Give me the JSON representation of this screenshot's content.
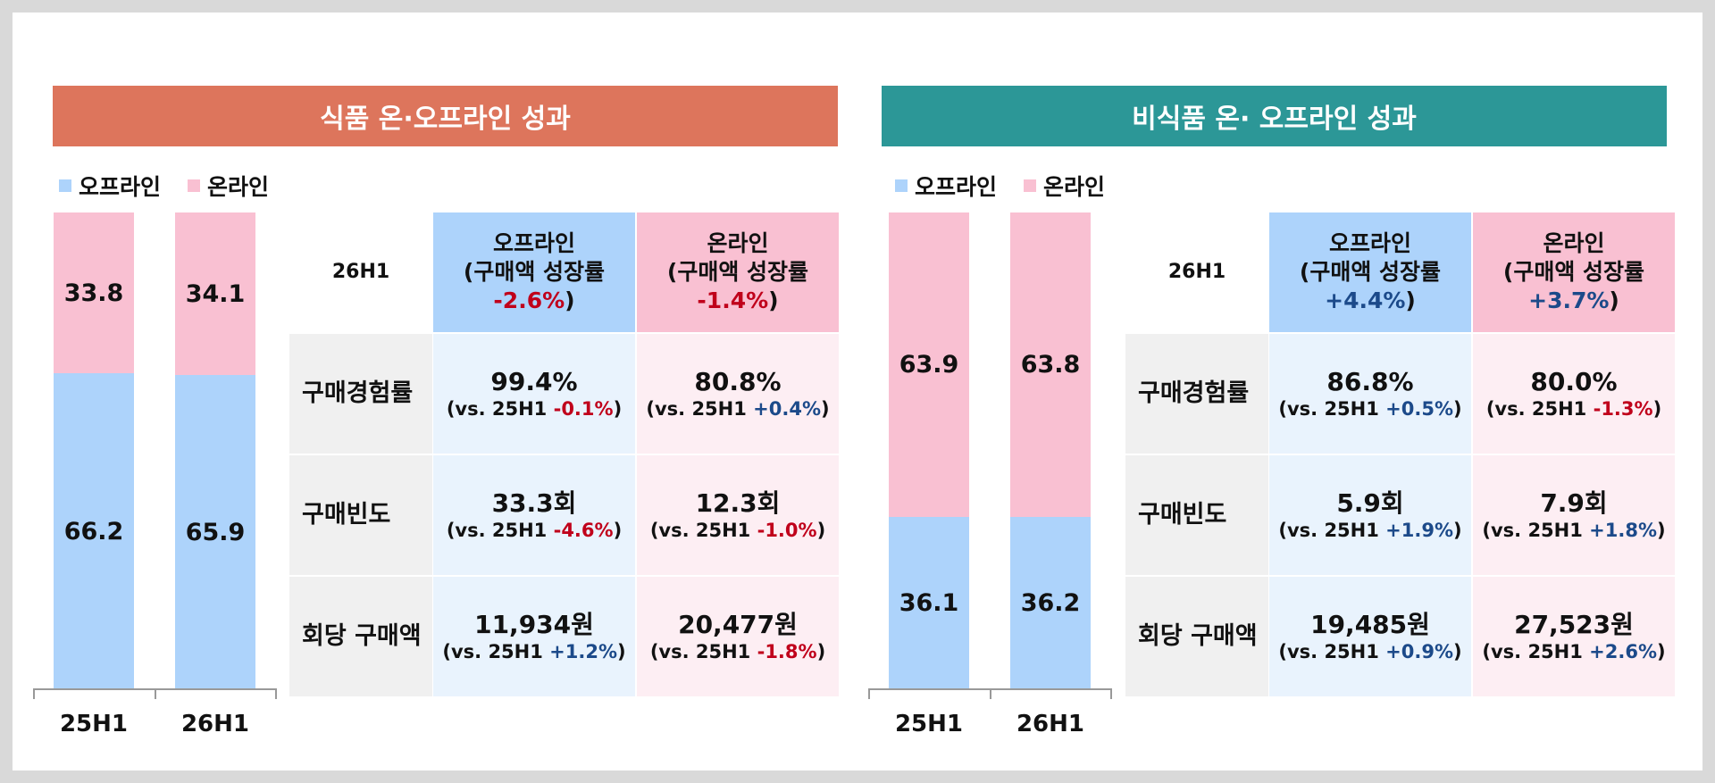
{
  "colors": {
    "food_header": "#dd755c",
    "nonfood_header": "#2c9797",
    "offline": "#add3fb",
    "online": "#f9c0d2",
    "offline_cell": "#e9f3fd",
    "online_cell": "#fdeef3",
    "negative": "#c0001b",
    "positive": "#1c4a8a"
  },
  "legend": {
    "offline": "오프라인",
    "online": "온라인"
  },
  "panels": [
    {
      "title": "식품 온·오프라인 성과",
      "chart_data": {
        "type": "bar",
        "stacked": true,
        "categories": [
          "25H1",
          "26H1"
        ],
        "series": [
          {
            "name": "오프라인",
            "values": [
              66.2,
              65.9
            ]
          },
          {
            "name": "온라인",
            "values": [
              33.8,
              34.1
            ]
          }
        ],
        "ylim": [
          0,
          100
        ]
      },
      "table": {
        "period": "26H1",
        "offline_head": {
          "line1": "오프라인",
          "line2": "(구매액 성장률",
          "rate": "-2.6%",
          "close": ")"
        },
        "online_head": {
          "line1": "온라인",
          "line2": "(구매액 성장률",
          "rate": "-1.4%",
          "close": ")"
        },
        "rows": [
          {
            "label": "구매경험률",
            "offline": {
              "value": "99.4%",
              "prefix": "(vs. 25H1 ",
              "change": "-0.1%",
              "suffix": ")"
            },
            "online": {
              "value": "80.8%",
              "prefix": "(vs. 25H1 ",
              "change": "+0.4%",
              "suffix": ")"
            }
          },
          {
            "label": "구매빈도",
            "offline": {
              "value": "33.3회",
              "prefix": "(vs. 25H1 ",
              "change": "-4.6%",
              "suffix": ")"
            },
            "online": {
              "value": "12.3회",
              "prefix": "(vs. 25H1 ",
              "change": "-1.0%",
              "suffix": ")"
            }
          },
          {
            "label": "회당 구매액",
            "offline": {
              "value": "11,934원",
              "prefix": "(vs. 25H1 ",
              "change": "+1.2%",
              "suffix": ")"
            },
            "online": {
              "value": "20,477원",
              "prefix": "(vs. 25H1 ",
              "change": "-1.8%",
              "suffix": ")"
            }
          }
        ]
      }
    },
    {
      "title": "비식품 온· 오프라인 성과",
      "chart_data": {
        "type": "bar",
        "stacked": true,
        "categories": [
          "25H1",
          "26H1"
        ],
        "series": [
          {
            "name": "오프라인",
            "values": [
              36.1,
              36.2
            ]
          },
          {
            "name": "온라인",
            "values": [
              63.9,
              63.8
            ]
          }
        ],
        "ylim": [
          0,
          100
        ]
      },
      "table": {
        "period": "26H1",
        "offline_head": {
          "line1": "오프라인",
          "line2": "(구매액 성장률",
          "rate": "+4.4%",
          "close": ")"
        },
        "online_head": {
          "line1": "온라인",
          "line2": "(구매액 성장률",
          "rate": "+3.7%",
          "close": ")"
        },
        "rows": [
          {
            "label": "구매경험률",
            "offline": {
              "value": "86.8%",
              "prefix": "(vs. 25H1 ",
              "change": "+0.5%",
              "suffix": ")"
            },
            "online": {
              "value": "80.0%",
              "prefix": "(vs. 25H1 ",
              "change": "-1.3%",
              "suffix": ")"
            }
          },
          {
            "label": "구매빈도",
            "offline": {
              "value": "5.9회",
              "prefix": "(vs. 25H1 ",
              "change": "+1.9%",
              "suffix": ")"
            },
            "online": {
              "value": "7.9회",
              "prefix": "(vs. 25H1 ",
              "change": "+1.8%",
              "suffix": ")"
            }
          },
          {
            "label": "회당 구매액",
            "offline": {
              "value": "19,485원",
              "prefix": "(vs. 25H1 ",
              "change": "+0.9%",
              "suffix": ")"
            },
            "online": {
              "value": "27,523원",
              "prefix": "(vs. 25H1 ",
              "change": "+2.6%",
              "suffix": ")"
            }
          }
        ]
      }
    }
  ]
}
